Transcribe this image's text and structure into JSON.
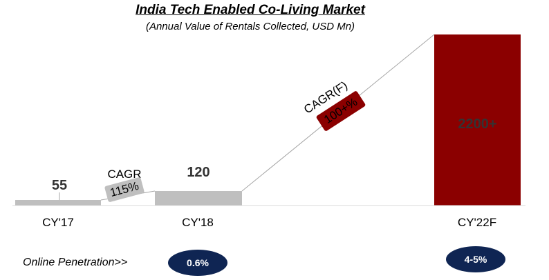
{
  "chart_data": {
    "type": "bar",
    "title": "India Tech Enabled Co-Living Market",
    "subtitle": "(Annual Value of Rentals Collected, USD Mn)",
    "categories": [
      "CY'17",
      "CY'18",
      "CY'22F"
    ],
    "values": [
      55,
      120,
      2200
    ],
    "value_labels": [
      "55",
      "120",
      "2200+"
    ],
    "colors": [
      "#bfbfbf",
      "#bfbfbf",
      "#8b0000"
    ],
    "annotations": [
      {
        "label": "CAGR",
        "value": "115%",
        "from": "CY'17",
        "to": "CY'18",
        "badge_color": "#bfbfbf"
      },
      {
        "label": "CAGR(F)",
        "value": "100+%",
        "from": "CY'18",
        "to": "CY'22F",
        "badge_color": "#8b0000"
      }
    ],
    "legend": false,
    "grid": false
  },
  "penetration": {
    "label": "Online Penetration>>",
    "values": [
      "0.6%",
      "4-5%"
    ],
    "color": "#0f2553"
  }
}
